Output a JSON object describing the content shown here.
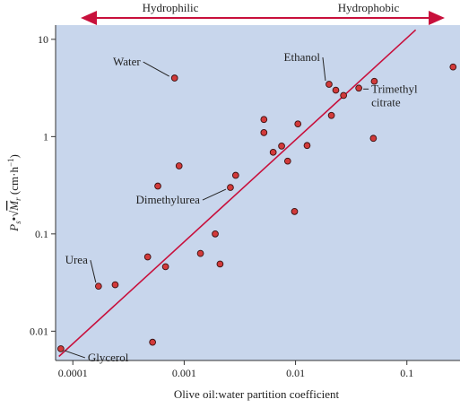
{
  "chart_data": {
    "type": "scatter",
    "banner": {
      "left": "Hydrophilic",
      "right": "Hydrophobic"
    },
    "xlabel": "Olive oil:water partition coefficient",
    "ylabel": "P",
    "ylabel_sub": "s",
    "ylabel_sqrt": "√",
    "ylabel_m": "M",
    "ylabel_msub": "r",
    "ylabel_units": " (cm·h",
    "ylabel_sup": "−1",
    "ylabel_close": ")",
    "xscale": "log",
    "yscale": "log",
    "xlim": [
      7e-05,
      0.3
    ],
    "ylim": [
      0.005,
      14
    ],
    "xticks": [
      {
        "value": 0.0001,
        "label": "0.0001"
      },
      {
        "value": 0.001,
        "label": "0.001"
      },
      {
        "value": 0.01,
        "label": "0.01"
      },
      {
        "value": 0.1,
        "label": "0.1"
      }
    ],
    "yticks": [
      {
        "value": 0.01,
        "label": "0.01"
      },
      {
        "value": 0.1,
        "label": "0.1"
      },
      {
        "value": 1,
        "label": "1"
      },
      {
        "value": 10,
        "label": "10"
      }
    ],
    "points": [
      {
        "x": 7.8e-05,
        "y": 0.0066
      },
      {
        "x": 0.00017,
        "y": 0.029
      },
      {
        "x": 0.00024,
        "y": 0.03
      },
      {
        "x": 0.00047,
        "y": 0.058
      },
      {
        "x": 0.00052,
        "y": 0.0077
      },
      {
        "x": 0.00058,
        "y": 0.31
      },
      {
        "x": 0.00068,
        "y": 0.046
      },
      {
        "x": 0.00082,
        "y": 4.0
      },
      {
        "x": 0.0009,
        "y": 0.5
      },
      {
        "x": 0.0014,
        "y": 0.063
      },
      {
        "x": 0.0019,
        "y": 0.1
      },
      {
        "x": 0.0021,
        "y": 0.049
      },
      {
        "x": 0.0026,
        "y": 0.3
      },
      {
        "x": 0.0029,
        "y": 0.4
      },
      {
        "x": 0.0052,
        "y": 1.5
      },
      {
        "x": 0.0052,
        "y": 1.1
      },
      {
        "x": 0.0063,
        "y": 0.69
      },
      {
        "x": 0.0075,
        "y": 0.8
      },
      {
        "x": 0.0085,
        "y": 0.56
      },
      {
        "x": 0.0098,
        "y": 0.17
      },
      {
        "x": 0.0105,
        "y": 1.35
      },
      {
        "x": 0.0127,
        "y": 0.81
      },
      {
        "x": 0.02,
        "y": 3.45
      },
      {
        "x": 0.021,
        "y": 1.65
      },
      {
        "x": 0.023,
        "y": 3.0
      },
      {
        "x": 0.027,
        "y": 2.65
      },
      {
        "x": 0.037,
        "y": 3.15
      },
      {
        "x": 0.05,
        "y": 0.96
      },
      {
        "x": 0.051,
        "y": 3.7
      },
      {
        "x": 0.26,
        "y": 5.2
      }
    ],
    "fit_line": {
      "x": [
        7.5e-05,
        0.12
      ],
      "y": [
        0.0055,
        12.5
      ]
    },
    "annotations": [
      {
        "text": "Water",
        "x": 0.00082,
        "y": 4.0,
        "side": "left"
      },
      {
        "text": "Ethanol",
        "x": 0.02,
        "y": 3.45,
        "side": "top-left"
      },
      {
        "text": "Trimethyl",
        "text2": "citrate",
        "x": 0.037,
        "y": 3.15,
        "side": "right"
      },
      {
        "text": "Dimethylurea",
        "x": 0.0026,
        "y": 0.3,
        "side": "left"
      },
      {
        "text": "Urea",
        "x": 0.00017,
        "y": 0.029,
        "side": "top-left"
      },
      {
        "text": "Glycerol",
        "x": 7.8e-05,
        "y": 0.0066,
        "side": "right"
      }
    ],
    "colors": {
      "plot_bg": "#c8d6ec",
      "point_fill": "#d23a3a",
      "point_stroke": "#3a1010",
      "line": "#c8103c",
      "arrow": "#c8103c",
      "axis": "#333333"
    },
    "grid": false
  }
}
